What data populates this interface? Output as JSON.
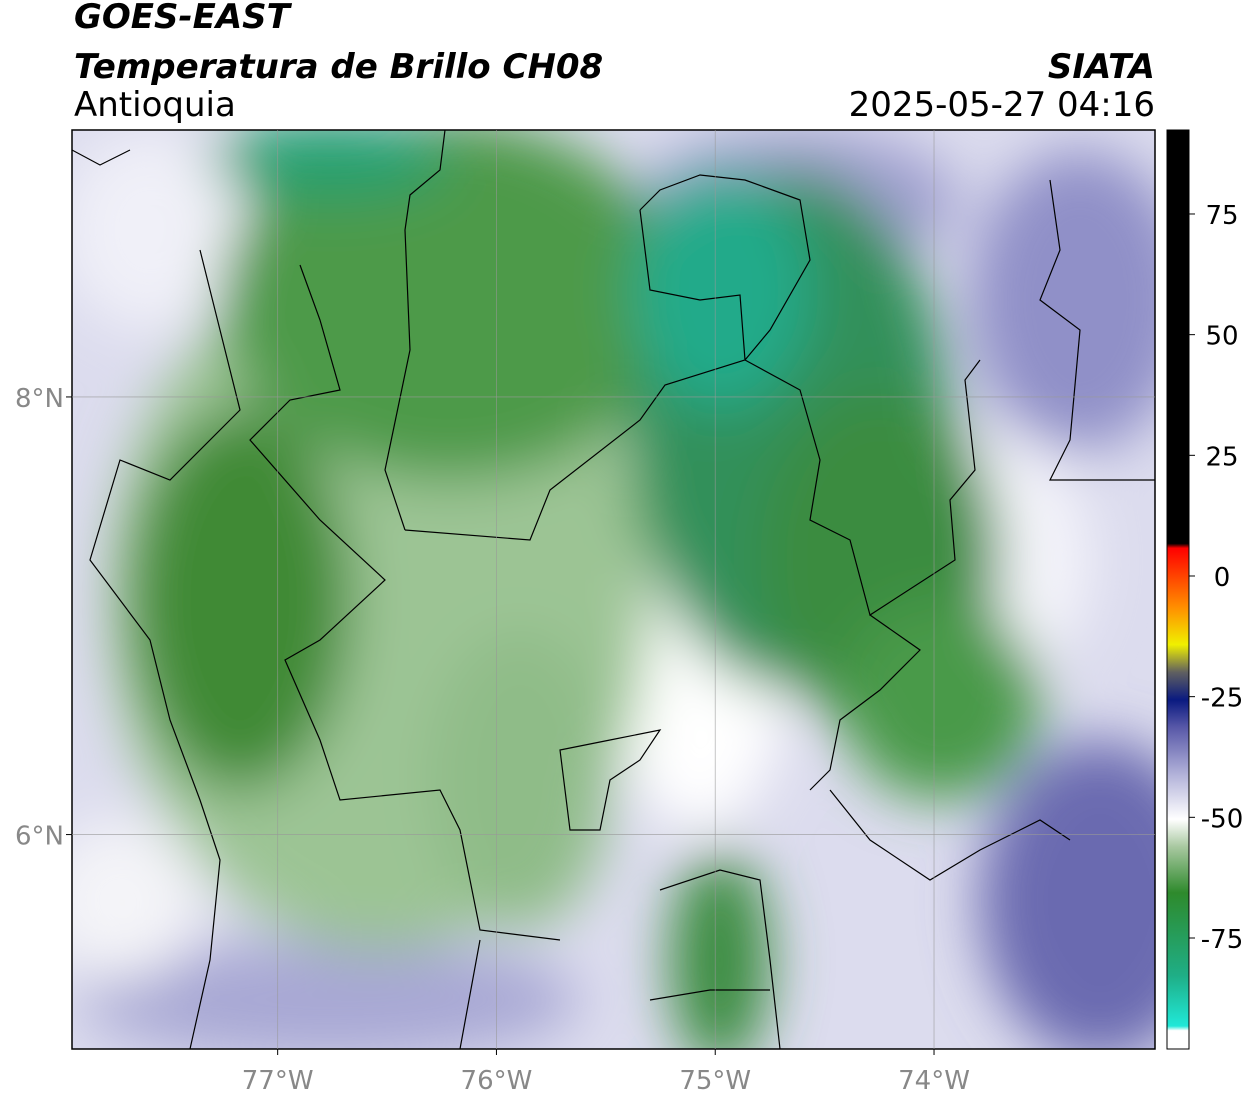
{
  "header": {
    "title": "GOES-EAST",
    "subtitle": "Temperatura de Brillo CH08",
    "region": "Antioquia",
    "source": "SIATA",
    "datetime": "2025-05-27 04:16"
  },
  "map": {
    "lonlim": [
      -77.94,
      -72.99
    ],
    "latlim": [
      5.02,
      9.22
    ],
    "lon_ticks": [
      {
        "value": -77,
        "label": "77°W"
      },
      {
        "value": -76,
        "label": "76°W"
      },
      {
        "value": -75,
        "label": "75°W"
      },
      {
        "value": -74,
        "label": "74°W"
      }
    ],
    "lat_ticks": [
      {
        "value": 8,
        "label": "8°N"
      },
      {
        "value": 6,
        "label": "6°N"
      }
    ],
    "grid": true
  },
  "colorbar": {
    "lim": [
      -98,
      92.4
    ],
    "ticks": [
      75,
      50,
      25,
      0,
      -25,
      -50,
      -75
    ]
  }
}
